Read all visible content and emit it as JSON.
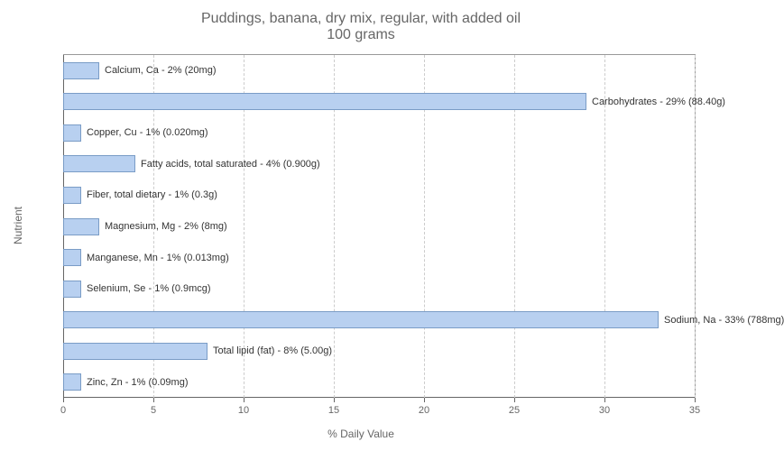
{
  "chart": {
    "type": "bar-horizontal",
    "title_line1": "Puddings, banana, dry mix, regular, with added oil",
    "title_line2": "100 grams",
    "title_fontsize": 13,
    "title_color": "#666666",
    "y_axis_label": "Nutrient",
    "x_axis_label": "% Daily Value",
    "axis_label_fontsize": 12,
    "axis_label_color": "#666666",
    "bar_color": "#b8d0f0",
    "bar_border_color": "#7a9cc6",
    "background_color": "#ffffff",
    "grid_color": "#cccccc",
    "axis_color": "#666666",
    "plot_border_color": "#999999",
    "xlim": [
      0,
      35
    ],
    "xtick_step": 5,
    "xtick_labels": [
      "0",
      "5",
      "10",
      "15",
      "20",
      "25",
      "30",
      "35"
    ],
    "bar_label_fontsize": 11,
    "bar_label_color": "#333333",
    "tick_label_fontsize": 11,
    "tick_label_color": "#666666",
    "bars": [
      {
        "label": "Calcium, Ca - 2% (20mg)",
        "value": 2
      },
      {
        "label": "Carbohydrates - 29% (88.40g)",
        "value": 29
      },
      {
        "label": "Copper, Cu - 1% (0.020mg)",
        "value": 1
      },
      {
        "label": "Fatty acids, total saturated - 4% (0.900g)",
        "value": 4
      },
      {
        "label": "Fiber, total dietary - 1% (0.3g)",
        "value": 1
      },
      {
        "label": "Magnesium, Mg - 2% (8mg)",
        "value": 2
      },
      {
        "label": "Manganese, Mn - 1% (0.013mg)",
        "value": 1
      },
      {
        "label": "Selenium, Se - 1% (0.9mcg)",
        "value": 1
      },
      {
        "label": "Sodium, Na - 33% (788mg)",
        "value": 33
      },
      {
        "label": "Total lipid (fat) - 8% (5.00g)",
        "value": 8
      },
      {
        "label": "Zinc, Zn - 1% (0.09mg)",
        "value": 1
      }
    ]
  }
}
